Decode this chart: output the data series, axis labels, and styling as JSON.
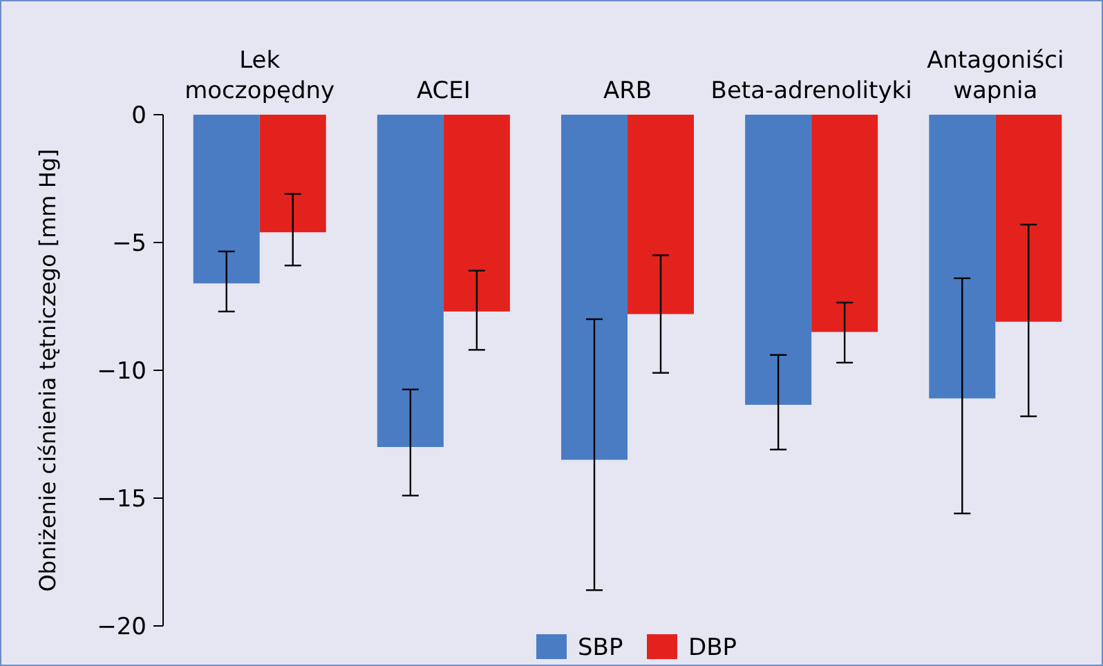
{
  "chart_data": {
    "type": "bar",
    "ylabel": "Obniżenie ciśnienia tętniczego [mm Hg]",
    "categories": [
      "Lek\nmoczopędny",
      "ACEI",
      "ARB",
      "Beta-adrenolityki",
      "Antagoniści\nwapnia"
    ],
    "series": [
      {
        "name": "SBP",
        "color": "#4a7cc3",
        "values": [
          -6.6,
          -13.0,
          -13.5,
          -11.35,
          -11.1
        ],
        "errors": [
          [
            -7.7,
            -5.35
          ],
          [
            -14.9,
            -10.75
          ],
          [
            -18.6,
            -8.0
          ],
          [
            -13.1,
            -9.4
          ],
          [
            -15.6,
            -6.4
          ]
        ]
      },
      {
        "name": "DBP",
        "color": "#e3221e",
        "values": [
          -4.6,
          -7.7,
          -7.8,
          -8.5,
          -8.1
        ],
        "errors": [
          [
            -5.9,
            -3.1
          ],
          [
            -9.2,
            -6.1
          ],
          [
            -10.1,
            -5.5
          ],
          [
            -9.7,
            -7.35
          ],
          [
            -11.8,
            -4.3
          ]
        ]
      }
    ],
    "ylim": [
      -20,
      0
    ],
    "yticks": [
      0,
      {
        "value": -5,
        "label": "−5"
      },
      {
        "value": -10,
        "label": "−10"
      },
      {
        "value": -15,
        "label": "−15"
      },
      {
        "value": -20,
        "label": "−20"
      }
    ],
    "grid": false,
    "legend": "bottom"
  }
}
